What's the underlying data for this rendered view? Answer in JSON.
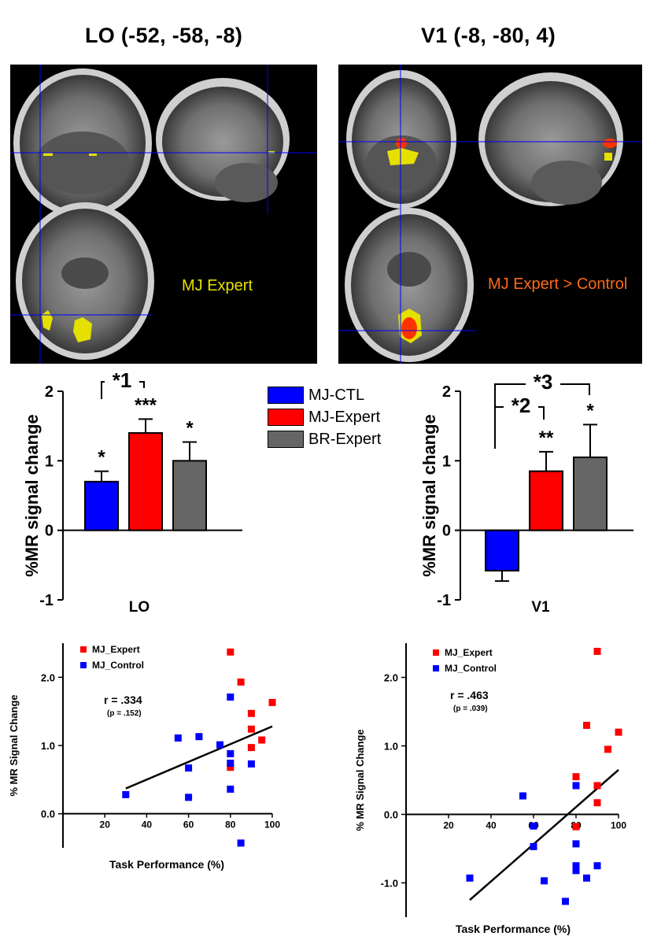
{
  "brain_panels": {
    "left": {
      "title": "LO (-52, -58, -8)",
      "label": "MJ Expert",
      "label_color": "#e8e000"
    },
    "right": {
      "title": "V1 (-8, -80, 4)",
      "label": "MJ Expert > Control",
      "label_color": "#ff6a1a"
    }
  },
  "legend": {
    "items": [
      {
        "label": "MJ-CTL",
        "color": "#0000ff"
      },
      {
        "label": "MJ-Expert",
        "color": "#ff0000"
      },
      {
        "label": "BR-Expert",
        "color": "#666666"
      }
    ]
  },
  "chart_data": [
    {
      "type": "bar",
      "ylabel": "%MR signal change",
      "xlabel": "LO",
      "ylim": [
        -1,
        2
      ],
      "yticks": [
        "-1",
        "0",
        "1",
        "2"
      ],
      "categories": [
        "MJ-CTL",
        "MJ-Expert",
        "BR-Expert"
      ],
      "values": [
        0.7,
        1.4,
        1.0
      ],
      "errors": [
        0.15,
        0.2,
        0.27
      ],
      "significance": [
        "*",
        "***",
        "*"
      ],
      "comparison_labels": [
        "*1"
      ],
      "colors": [
        "#0000ff",
        "#ff0000",
        "#666666"
      ]
    },
    {
      "type": "bar",
      "ylabel": "%MR signal change",
      "xlabel": "V1",
      "ylim": [
        -1,
        2
      ],
      "yticks": [
        "-1",
        "0",
        "1",
        "2"
      ],
      "categories": [
        "MJ-CTL",
        "MJ-Expert",
        "BR-Expert"
      ],
      "values": [
        -0.58,
        0.85,
        1.05
      ],
      "errors": [
        0.15,
        0.28,
        0.47
      ],
      "significance": [
        "",
        "**",
        "*"
      ],
      "comparison_labels": [
        "*2",
        "*3"
      ],
      "colors": [
        "#0000ff",
        "#ff0000",
        "#666666"
      ]
    },
    {
      "type": "scatter",
      "xlabel": "Task Performance (%)",
      "ylabel": "% MR Signal Change",
      "xlim": [
        0,
        100
      ],
      "ylim": [
        -0.5,
        2.5
      ],
      "xticks": [
        "20",
        "40",
        "60",
        "80",
        "100"
      ],
      "yticks": [
        "0.0",
        "1.0",
        "2.0"
      ],
      "r_label": "r = .334",
      "p_label": "(p = .152)",
      "fit_line": {
        "x": [
          30,
          100
        ],
        "y": [
          0.37,
          1.28
        ]
      },
      "series": [
        {
          "name": "MJ_Expert",
          "color": "#ff0000",
          "x": [
            80,
            85,
            90,
            100,
            90,
            95,
            90,
            80
          ],
          "y": [
            2.37,
            1.93,
            1.47,
            1.63,
            1.24,
            1.08,
            0.97,
            0.68
          ]
        },
        {
          "name": "MJ_Control",
          "color": "#0000ff",
          "x": [
            80,
            55,
            65,
            75,
            80,
            60,
            80,
            90,
            30,
            60,
            80,
            85
          ],
          "y": [
            1.71,
            1.11,
            1.13,
            1.01,
            0.88,
            0.67,
            0.74,
            0.73,
            0.28,
            0.24,
            0.36,
            -0.43
          ]
        }
      ]
    },
    {
      "type": "scatter",
      "xlabel": "Task Performance (%)",
      "ylabel": "% MR Signal Change",
      "xlim": [
        0,
        100
      ],
      "ylim": [
        -1.5,
        2.5
      ],
      "xticks": [
        "20",
        "40",
        "60",
        "80",
        "100"
      ],
      "yticks": [
        "-1.0",
        "0.0",
        "1.0",
        "2.0"
      ],
      "r_label": "r = .463",
      "p_label": "(p = .039)",
      "fit_line": {
        "x": [
          30,
          100
        ],
        "y": [
          -1.25,
          0.65
        ]
      },
      "series": [
        {
          "name": "MJ_Expert",
          "color": "#ff0000",
          "x": [
            90,
            85,
            100,
            95,
            80,
            90,
            90,
            80
          ],
          "y": [
            2.38,
            1.3,
            1.2,
            0.95,
            0.55,
            0.42,
            0.17,
            -0.18
          ]
        },
        {
          "name": "MJ_Control",
          "color": "#0000ff",
          "x": [
            55,
            80,
            60,
            60,
            80,
            80,
            80,
            90,
            30,
            65,
            85,
            75
          ],
          "y": [
            0.27,
            0.42,
            -0.17,
            -0.47,
            -0.43,
            -0.75,
            -0.82,
            -0.75,
            -0.93,
            -0.97,
            -0.93,
            -1.27
          ]
        }
      ]
    }
  ]
}
